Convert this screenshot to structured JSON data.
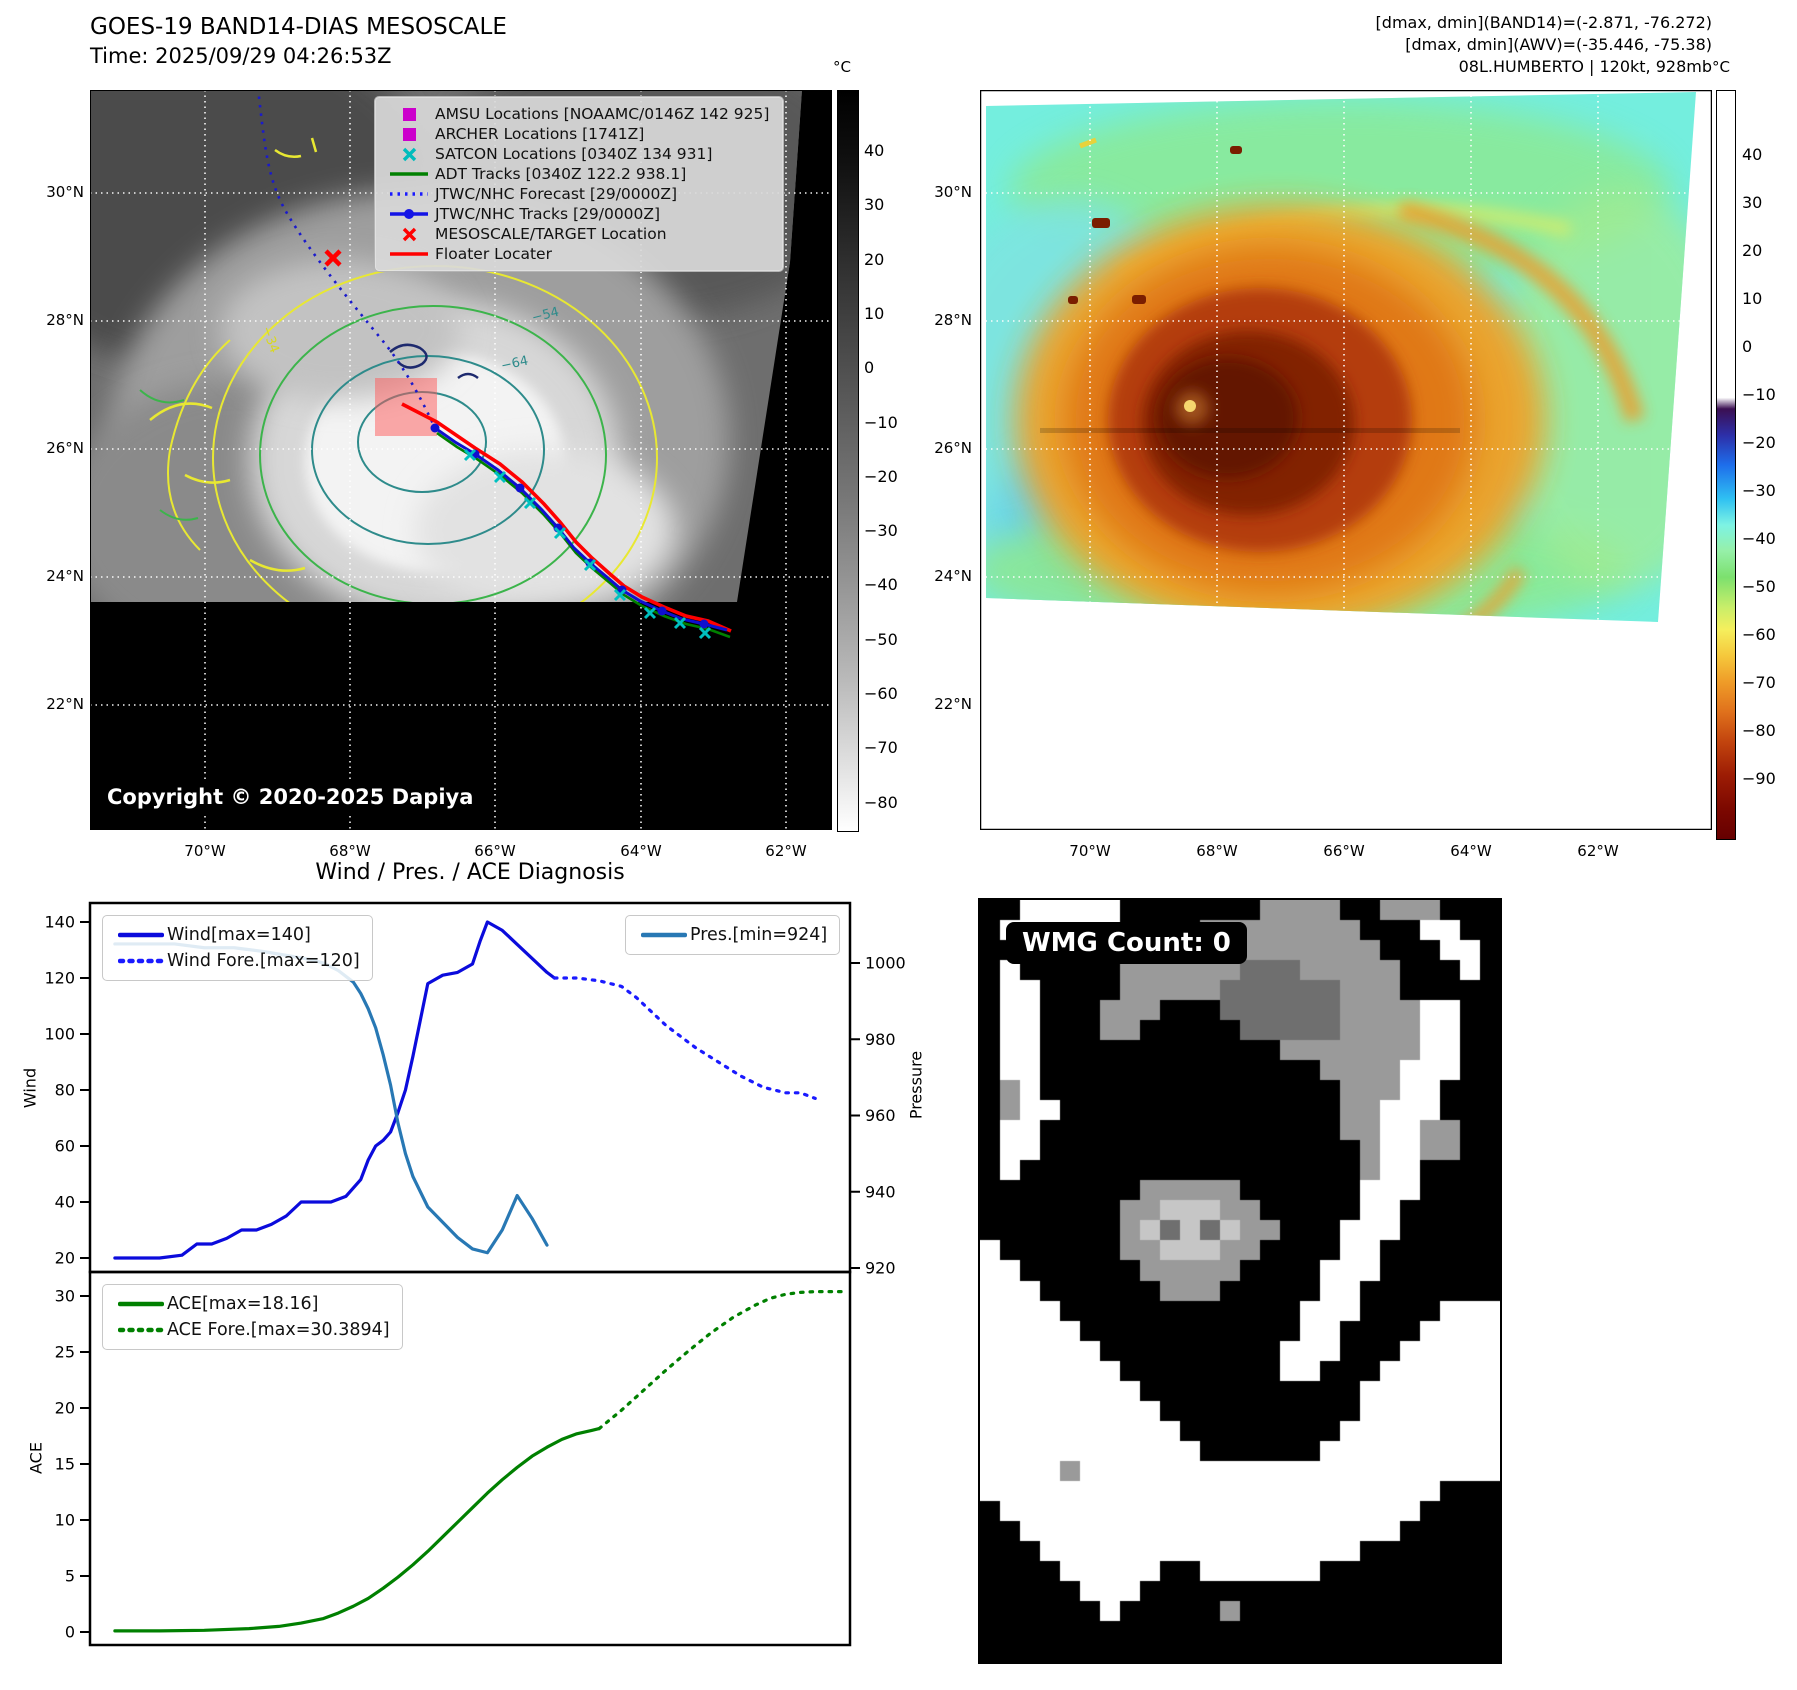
{
  "panel_tl": {
    "title_line1": "GOES-19 BAND14-DIAS MESOSCALE",
    "title_line2": "Time: 2025/09/29 04:26:53Z",
    "copyright": "Copyright © 2020-2025 Dapiya",
    "legend": [
      {
        "label": "AMSU Locations [NOAAMC/0146Z 142 925]",
        "glyph": "square",
        "color": "#cc00cc"
      },
      {
        "label": "ARCHER Locations [1741Z]",
        "glyph": "square",
        "color": "#cc00cc"
      },
      {
        "label": "SATCON Locations [0340Z 134 931]",
        "glyph": "x",
        "color": "#00bcbc"
      },
      {
        "label": "ADT Tracks [0340Z 122.2 938.1]",
        "glyph": "line",
        "color": "#008000"
      },
      {
        "label": "JTWC/NHC Forecast [29/0000Z]",
        "glyph": "dotted",
        "color": "#1a1aff"
      },
      {
        "label": "JTWC/NHC Tracks [29/0000Z]",
        "glyph": "line-dot",
        "color": "#1414e6"
      },
      {
        "label": "MESOSCALE/TARGET Location",
        "glyph": "x",
        "color": "#ff0000"
      },
      {
        "label": "Floater Locater",
        "glyph": "line",
        "color": "#ff0000"
      }
    ],
    "lat_labels": [
      "30°N",
      "28°N",
      "26°N",
      "24°N",
      "22°N"
    ],
    "lon_labels": [
      "70°W",
      "68°W",
      "66°W",
      "64°W",
      "62°W"
    ],
    "contour_labels": [
      {
        "text": "-54",
        "color": "#2e8b8b"
      },
      {
        "text": "-64",
        "color": "#2e8b8b"
      },
      {
        "text": "-34",
        "color": "#d8d820"
      }
    ],
    "colorbar": {
      "unit": "°C",
      "ticks": [
        "40",
        "30",
        "20",
        "10",
        "0",
        "−10",
        "−20",
        "−30",
        "−40",
        "−50",
        "−60",
        "−70",
        "−80"
      ]
    }
  },
  "panel_tr": {
    "info_line1": "[dmax, dmin](BAND14)=(-2.871, -76.272)",
    "info_line2": "[dmax, dmin](AWV)=(-35.446, -75.38)",
    "info_line3": "08L.HUMBERTO | 120kt, 928mb",
    "lat_labels": [
      "30°N",
      "28°N",
      "26°N",
      "24°N",
      "22°N"
    ],
    "lon_labels": [
      "70°W",
      "68°W",
      "66°W",
      "64°W",
      "62°W"
    ],
    "colorbar": {
      "unit": "°C",
      "ticks": [
        "40",
        "30",
        "20",
        "10",
        "0",
        "−10",
        "−20",
        "−30",
        "−40",
        "−50",
        "−60",
        "−70",
        "−80",
        "−90"
      ]
    }
  },
  "chart_data": [
    {
      "type": "line",
      "title": "Wind / Pres. / ACE Diagnosis",
      "ylabel_left": "Wind",
      "ylabel_right": "Pressure",
      "ylim_left": [
        15,
        147
      ],
      "ylim_right": [
        918,
        1016
      ],
      "yticks_left": [
        20,
        40,
        60,
        80,
        100,
        120,
        140
      ],
      "yticks_right": [
        920,
        940,
        960,
        980,
        1000
      ],
      "xlim": [
        0,
        100
      ],
      "grid": false,
      "legend_position": "upper-left and upper-right",
      "series": [
        {
          "name": "Wind[max=140]",
          "axis": "left",
          "color": "#0b0bdc",
          "style": "solid",
          "legend_box": "left",
          "x": [
            2,
            5,
            8,
            11,
            13,
            15,
            17,
            19,
            21,
            23,
            25,
            27,
            29,
            31,
            33,
            35,
            36,
            37,
            38,
            39,
            40,
            41,
            42,
            43,
            44,
            46,
            48,
            50,
            51,
            52,
            54,
            56,
            58,
            60,
            61
          ],
          "y": [
            20,
            20,
            20,
            21,
            25,
            25,
            27,
            30,
            30,
            32,
            35,
            40,
            40,
            40,
            42,
            48,
            55,
            60,
            62,
            65,
            72,
            80,
            92,
            105,
            118,
            121,
            122,
            125,
            133,
            140,
            137,
            132,
            127,
            122,
            120
          ]
        },
        {
          "name": "Wind Fore.[max=120]",
          "axis": "left",
          "color": "#1a1aff",
          "style": "dotted",
          "legend_box": "left",
          "x": [
            61,
            64,
            67,
            70,
            72,
            74,
            76,
            78,
            80,
            83,
            86,
            89,
            92,
            94,
            96
          ],
          "y": [
            120,
            120,
            119,
            117,
            113,
            108,
            103,
            99,
            95,
            90,
            85,
            81,
            79,
            79,
            77
          ]
        },
        {
          "name": "Pres.[min=924]",
          "axis": "right",
          "color": "#2878b4",
          "style": "solid",
          "legend_box": "right",
          "x": [
            2,
            6,
            10,
            14,
            18,
            22,
            25,
            28,
            30,
            32,
            34,
            35,
            36,
            37,
            38,
            39,
            40,
            41,
            42,
            43,
            44,
            46,
            48,
            50,
            52,
            54,
            56,
            58,
            60
          ],
          "y": [
            1005,
            1005,
            1005,
            1004,
            1004,
            1003,
            1002,
            1001,
            1000,
            998,
            995,
            992,
            988,
            983,
            976,
            968,
            958,
            950,
            944,
            940,
            936,
            932,
            928,
            925,
            924,
            930,
            939,
            933,
            926
          ]
        }
      ]
    },
    {
      "type": "line",
      "ylabel_left": "ACE",
      "ylim_left": [
        -1.5,
        32.2
      ],
      "yticks_left": [
        0,
        5,
        10,
        15,
        20,
        25,
        30
      ],
      "xlim": [
        0,
        100
      ],
      "grid": false,
      "legend_position": "upper-left",
      "series": [
        {
          "name": "ACE[max=18.16]",
          "axis": "left",
          "color": "#008000",
          "style": "solid",
          "legend_box": "left",
          "x": [
            2,
            8,
            14,
            20,
            24,
            27,
            30,
            32,
            34,
            36,
            38,
            40,
            42,
            44,
            46,
            48,
            50,
            52,
            54,
            56,
            58,
            60,
            62,
            64,
            66,
            67
          ],
          "y": [
            0.1,
            0.1,
            0.15,
            0.3,
            0.5,
            0.8,
            1.2,
            1.7,
            2.3,
            3.0,
            3.9,
            4.9,
            6.0,
            7.2,
            8.5,
            9.8,
            11.1,
            12.4,
            13.6,
            14.7,
            15.7,
            16.5,
            17.2,
            17.7,
            18.0,
            18.16
          ]
        },
        {
          "name": "ACE Fore.[max=30.3894]",
          "axis": "left",
          "color": "#008000",
          "style": "dotted",
          "legend_box": "left",
          "x": [
            67,
            70,
            73,
            76,
            79,
            82,
            85,
            88,
            90,
            92,
            94,
            96,
            98,
            100
          ],
          "y": [
            18.16,
            19.8,
            21.6,
            23.4,
            25.1,
            26.7,
            28.1,
            29.2,
            29.8,
            30.15,
            30.32,
            30.39,
            30.39,
            30.39
          ]
        }
      ]
    }
  ],
  "panel_br": {
    "badge": "WMG Count: 0",
    "palette": {
      "k": "#000000",
      "w": "#ffffff",
      "g": "#9a9a9a",
      "d": "#6f6f6f",
      "l": "#c6c6c6"
    },
    "grid": [
      "kkwwwwwkkkkkkkggggkkgggkkk",
      "kwwwwwwkkkkggggggggkkkwwkk",
      "kkwwwkkkkgggggggggggkkkwwk",
      "kwkkkkkggggggdddgggggkkkwk",
      "kwwkkkkgggggddddddgggkkkkk",
      "kwwkkkgggkkkddddddggggwwkk",
      "kwwkkkggkkkkkdddddggggwwkk",
      "kwwkkkkkkkkkkkkgggggggwwkk",
      "kwwkkkkkkkkkkkkkkggggwwwkk",
      "kgwkkkkkkkkkkkkkkkgggwwkkk",
      "kgwwkkkkkkkkkkkkkkggwwwkkk",
      "kwwkkkkkkkkkkkkkkkggwwggkk",
      "kwwkkkkkkkkkkkkkkkkgwwggkk",
      "kwkkkkkkkkkkkkkkkkkgwwkkkk",
      "kkkkkkkkgggggkkkkkkwwwkkkk",
      "kkkkkkkgglllggkkkkkwwkkkkk",
      "kkkkkkkgldldlggkkkwwwkkkkk",
      "wkkkkkkgglllggkkkkwwkkkkkk",
      "wwkkkkkkgggggkkkkwwwkkkkkk",
      "wwwkkkkkkgggkkkkkwwkkkkkkk",
      "wwwwkkkkkkkkkkkkwwwkkkkwww",
      "wwwwwkkkkkkkkkkkwwkkkkwwww",
      "wwwwwwkkkkkkkkkwwwkkkwwwww",
      "wwwwwwwkkkkkkkkwwkkkwwwwww",
      "wwwwwwwwkkkkkkkkkkkwwwwwww",
      "wwwwwwwwwkkkkkkkkkkwwwwwww",
      "wwwwwwwwwwkkkkkkkkwwwwwwww",
      "wwwwwwwwwwwkkkkkkwwwwwwwww",
      "wwwwgwwwwwwwwwwwwwwwwwwwww",
      "wwwwwwwwwwwwwwwwwwwwwwwkkk",
      "kwwwwwwwwwwwwwwwwwwwwwkkkk",
      "kkwwwwwwwwwwwwwwwwwwwkkkkk",
      "kkkwwwwwwwwwwwwwwwwkkkkkkk",
      "kkkkwwwwwkkwwwwwwkkkkkkkkk",
      "kkkkkwwwkkkkkkkkkkkkkkkkkk",
      "kkkkkkwkkkkkgkkkkkkkkkkkkk",
      "kkkkkkkkkkkkkkkkkkkkkkkkkk",
      "kkkkkkkkkkkkkkkkkkkkkkkkkk"
    ]
  }
}
